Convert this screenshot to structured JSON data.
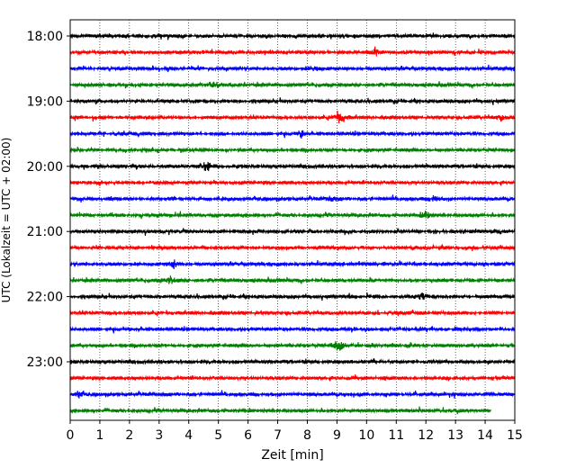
{
  "chart_data": {
    "type": "line",
    "title": "",
    "xlabel": "Zeit  [min]",
    "ylabel": "UTC (Lokalzeit = UTC + 02:00)",
    "xlim": [
      0,
      15
    ],
    "x_ticks": [
      0,
      1,
      2,
      3,
      4,
      5,
      6,
      7,
      8,
      9,
      10,
      11,
      12,
      13,
      14,
      15
    ],
    "x_tick_labels": [
      "0",
      "1",
      "2",
      "3",
      "4",
      "5",
      "6",
      "7",
      "8",
      "9",
      "10",
      "11",
      "12",
      "13",
      "14",
      "15"
    ],
    "y_tick_labels": [
      "18:00",
      "19:00",
      "20:00",
      "21:00",
      "22:00",
      "23:00"
    ],
    "y_tick_times": [
      "18:00",
      "19:00",
      "20:00",
      "21:00",
      "22:00",
      "23:00"
    ],
    "minutes_per_trace": 15,
    "grid": "vertical dotted at each minute",
    "colors": {
      "cycle": [
        "#000000",
        "#ff0000",
        "#0000ff",
        "#008000"
      ]
    },
    "series": [
      {
        "start": "18:00",
        "color": "#000000",
        "x_end": 15
      },
      {
        "start": "18:15",
        "color": "#ff0000",
        "x_end": 15,
        "events": [
          {
            "x": 10.3,
            "amp": 0.5
          }
        ]
      },
      {
        "start": "18:30",
        "color": "#0000ff",
        "x_end": 15,
        "events": [
          {
            "x": 8.2,
            "amp": 0.5
          }
        ]
      },
      {
        "start": "18:45",
        "color": "#008000",
        "x_end": 15,
        "events": [
          {
            "x": 4.9,
            "amp": 0.5
          }
        ]
      },
      {
        "start": "19:00",
        "color": "#000000",
        "x_end": 15
      },
      {
        "start": "19:15",
        "color": "#ff0000",
        "x_end": 15,
        "events": [
          {
            "x": 9.1,
            "amp": 1.5
          },
          {
            "x": 14.5,
            "amp": 0.5
          }
        ]
      },
      {
        "start": "19:30",
        "color": "#0000ff",
        "x_end": 15,
        "events": [
          {
            "x": 7.8,
            "amp": 0.5
          }
        ]
      },
      {
        "start": "19:45",
        "color": "#008000",
        "x_end": 15
      },
      {
        "start": "20:00",
        "color": "#000000",
        "x_end": 15,
        "events": [
          {
            "x": 4.6,
            "amp": 1.0
          }
        ]
      },
      {
        "start": "20:15",
        "color": "#ff0000",
        "x_end": 15
      },
      {
        "start": "20:30",
        "color": "#0000ff",
        "x_end": 15,
        "events": [
          {
            "x": 8.8,
            "amp": 0.5
          },
          {
            "x": 12.3,
            "amp": 0.5
          }
        ]
      },
      {
        "start": "20:45",
        "color": "#008000",
        "x_end": 15,
        "events": [
          {
            "x": 12.0,
            "amp": 0.7
          }
        ]
      },
      {
        "start": "21:00",
        "color": "#000000",
        "x_end": 15
      },
      {
        "start": "21:15",
        "color": "#ff0000",
        "x_end": 15
      },
      {
        "start": "21:30",
        "color": "#0000ff",
        "x_end": 15,
        "events": [
          {
            "x": 3.5,
            "amp": 0.6
          }
        ]
      },
      {
        "start": "21:45",
        "color": "#008000",
        "x_end": 15,
        "events": [
          {
            "x": 3.4,
            "amp": 0.6
          }
        ]
      },
      {
        "start": "22:00",
        "color": "#000000",
        "x_end": 15,
        "events": [
          {
            "x": 11.9,
            "amp": 0.6
          }
        ]
      },
      {
        "start": "22:15",
        "color": "#ff0000",
        "x_end": 15
      },
      {
        "start": "22:30",
        "color": "#0000ff",
        "x_end": 15
      },
      {
        "start": "22:45",
        "color": "#008000",
        "x_end": 15,
        "events": [
          {
            "x": 9.05,
            "amp": 1.3
          }
        ]
      },
      {
        "start": "23:00",
        "color": "#000000",
        "x_end": 15
      },
      {
        "start": "23:15",
        "color": "#ff0000",
        "x_end": 15
      },
      {
        "start": "23:30",
        "color": "#0000ff",
        "x_end": 15,
        "events": [
          {
            "x": 0.3,
            "amp": 0.5
          }
        ]
      },
      {
        "start": "23:45",
        "color": "#008000",
        "x_end": 14.2
      }
    ]
  }
}
